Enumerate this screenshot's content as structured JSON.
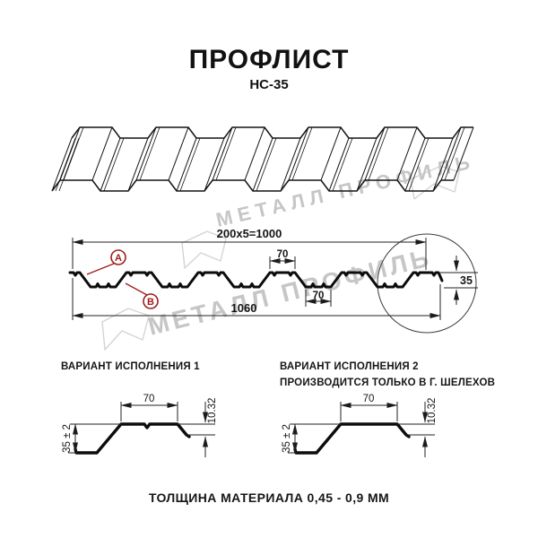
{
  "header": {
    "title": "ПРОФЛИСТ",
    "subtitle": "НС-35"
  },
  "watermark": {
    "brand": "МЕТАЛЛ ПРОФИЛЬ"
  },
  "cross_section": {
    "dim_total_top": "200x5=1000",
    "dim_crest_width": "70",
    "dim_valley_width": "70",
    "dim_total_bottom": "1060",
    "dim_height": "35",
    "callout_a": "А",
    "callout_b": "В"
  },
  "variants": [
    {
      "title": "ВАРИАНТ ИСПОЛНЕНИЯ 1",
      "dim_width": "70",
      "dim_edge": "10.32",
      "dim_height": "35 ± 2"
    },
    {
      "title": "ВАРИАНТ ИСПОЛНЕНИЯ 2",
      "note": "ПРОИЗВОДИТСЯ ТОЛЬКО В Г. ШЕЛЕХОВ",
      "dim_width": "70",
      "dim_edge": "10.32",
      "dim_height": "35 ± 2"
    }
  ],
  "footer": {
    "note": "ТОЛЩИНА МАТЕРИАЛА 0,45 - 0,9 ММ"
  },
  "colors": {
    "line": "#1a1a1a",
    "accent_red": "#a11d1d",
    "watermark_gray": "#c6c6c6"
  }
}
